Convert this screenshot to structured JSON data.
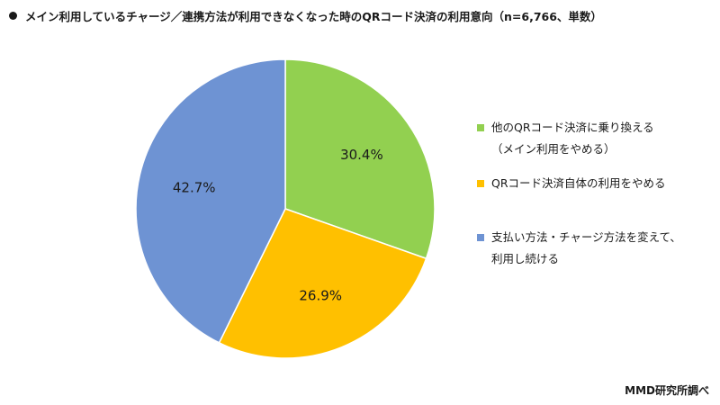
{
  "title": "メイン利用しているチャージ／連携方法が利用できなくなった時のQRコード決済の利用意向（n=6,766、単数）",
  "source": "MMD研究所調べ",
  "chart_data": {
    "type": "pie",
    "start_angle_deg": 0,
    "direction": "clockwise",
    "slices": [
      {
        "label_line1": "他のQRコード決済に乗り換える",
        "label_line2": "（メイン利用をやめる）",
        "value": 30.4,
        "value_label": "30.4%",
        "color": "#92d050"
      },
      {
        "label_line1": "QRコード決済自体の利用をやめる",
        "label_line2": "",
        "value": 26.9,
        "value_label": "26.9%",
        "color": "#ffc000"
      },
      {
        "label_line1": "支払い方法・チャージ方法を変えて、",
        "label_line2": "利用し続ける",
        "value": 42.7,
        "value_label": "42.7%",
        "color": "#6e93d3"
      }
    ]
  }
}
